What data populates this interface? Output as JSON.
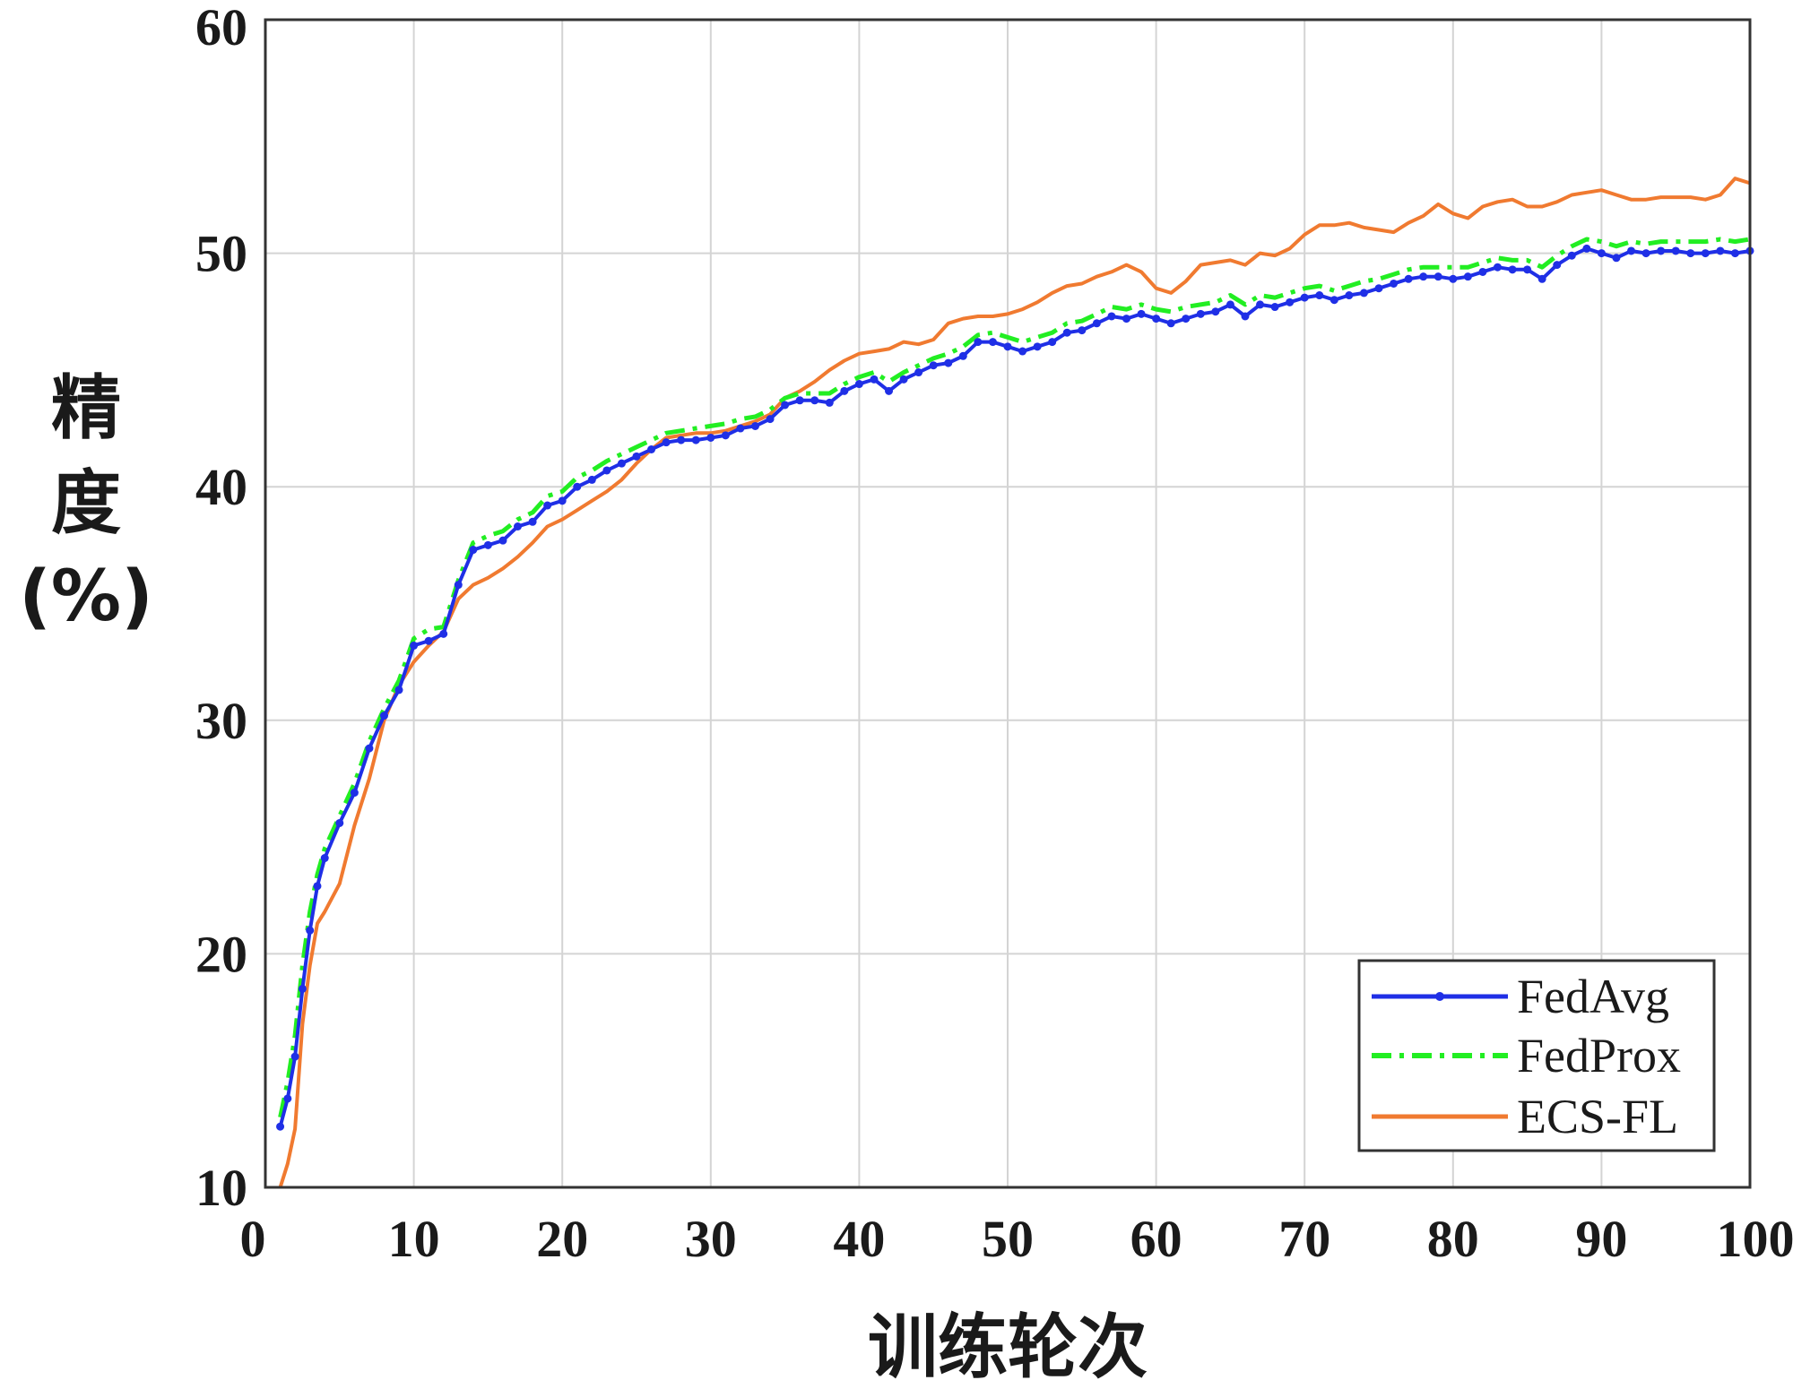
{
  "chart_data": {
    "type": "line",
    "xlabel": "训练轮次",
    "ylabel_lines": [
      "精",
      "度",
      "(%)"
    ],
    "xlim": [
      0,
      100
    ],
    "ylim": [
      10,
      60
    ],
    "xticks": [
      "0",
      "10",
      "20",
      "30",
      "40",
      "50",
      "60",
      "70",
      "80",
      "90",
      "100"
    ],
    "yticks": [
      "10",
      "20",
      "30",
      "40",
      "50",
      "60"
    ],
    "grid": true,
    "legend_position": "bottom-right",
    "series": [
      {
        "name": "FedAvg",
        "color": "#1f2fe6",
        "style": "solid-dots",
        "points": [
          [
            1,
            12.6
          ],
          [
            1.5,
            13.8
          ],
          [
            2,
            15.6
          ],
          [
            2.5,
            18.5
          ],
          [
            3,
            21.0
          ],
          [
            3.5,
            22.9
          ],
          [
            4,
            24.1
          ],
          [
            5,
            25.6
          ],
          [
            6,
            26.9
          ],
          [
            7,
            28.8
          ],
          [
            8,
            30.2
          ],
          [
            9,
            31.3
          ],
          [
            10,
            33.2
          ],
          [
            11,
            33.4
          ],
          [
            12,
            33.7
          ],
          [
            13,
            35.8
          ],
          [
            14,
            37.3
          ],
          [
            15,
            37.5
          ],
          [
            16,
            37.7
          ],
          [
            17,
            38.3
          ],
          [
            18,
            38.5
          ],
          [
            19,
            39.2
          ],
          [
            20,
            39.4
          ],
          [
            21,
            40.0
          ],
          [
            22,
            40.3
          ],
          [
            23,
            40.7
          ],
          [
            24,
            41.0
          ],
          [
            25,
            41.3
          ],
          [
            26,
            41.6
          ],
          [
            27,
            41.9
          ],
          [
            28,
            42.0
          ],
          [
            29,
            42.0
          ],
          [
            30,
            42.1
          ],
          [
            31,
            42.2
          ],
          [
            32,
            42.5
          ],
          [
            33,
            42.6
          ],
          [
            34,
            42.9
          ],
          [
            35,
            43.5
          ],
          [
            36,
            43.7
          ],
          [
            37,
            43.7
          ],
          [
            38,
            43.6
          ],
          [
            39,
            44.1
          ],
          [
            40,
            44.4
          ],
          [
            41,
            44.6
          ],
          [
            42,
            44.1
          ],
          [
            43,
            44.6
          ],
          [
            44,
            44.9
          ],
          [
            45,
            45.2
          ],
          [
            46,
            45.3
          ],
          [
            47,
            45.6
          ],
          [
            48,
            46.2
          ],
          [
            49,
            46.2
          ],
          [
            50,
            46.0
          ],
          [
            51,
            45.8
          ],
          [
            52,
            46.0
          ],
          [
            53,
            46.2
          ],
          [
            54,
            46.6
          ],
          [
            55,
            46.7
          ],
          [
            56,
            47.0
          ],
          [
            57,
            47.3
          ],
          [
            58,
            47.2
          ],
          [
            59,
            47.4
          ],
          [
            60,
            47.2
          ],
          [
            61,
            47.0
          ],
          [
            62,
            47.2
          ],
          [
            63,
            47.4
          ],
          [
            64,
            47.5
          ],
          [
            65,
            47.8
          ],
          [
            66,
            47.3
          ],
          [
            67,
            47.8
          ],
          [
            68,
            47.7
          ],
          [
            69,
            47.9
          ],
          [
            70,
            48.1
          ],
          [
            71,
            48.2
          ],
          [
            72,
            48.0
          ],
          [
            73,
            48.2
          ],
          [
            74,
            48.3
          ],
          [
            75,
            48.5
          ],
          [
            76,
            48.7
          ],
          [
            77,
            48.9
          ],
          [
            78,
            49.0
          ],
          [
            79,
            49.0
          ],
          [
            80,
            48.9
          ],
          [
            81,
            49.0
          ],
          [
            82,
            49.2
          ],
          [
            83,
            49.4
          ],
          [
            84,
            49.3
          ],
          [
            85,
            49.3
          ],
          [
            86,
            48.9
          ],
          [
            87,
            49.5
          ],
          [
            88,
            49.9
          ],
          [
            89,
            50.2
          ],
          [
            90,
            50.0
          ],
          [
            91,
            49.8
          ],
          [
            92,
            50.1
          ],
          [
            93,
            50.0
          ],
          [
            94,
            50.1
          ],
          [
            95,
            50.1
          ],
          [
            96,
            50.0
          ],
          [
            97,
            50.0
          ],
          [
            98,
            50.1
          ],
          [
            99,
            50.0
          ],
          [
            100,
            50.1
          ]
        ]
      },
      {
        "name": "FedProx",
        "color": "#22ee22",
        "style": "dash-dot",
        "points": [
          [
            1,
            13.0
          ],
          [
            1.5,
            14.5
          ],
          [
            2,
            16.5
          ],
          [
            2.5,
            19.5
          ],
          [
            3,
            21.8
          ],
          [
            3.5,
            23.4
          ],
          [
            4,
            24.5
          ],
          [
            5,
            25.9
          ],
          [
            6,
            27.3
          ],
          [
            7,
            29.1
          ],
          [
            8,
            30.5
          ],
          [
            9,
            31.7
          ],
          [
            10,
            33.5
          ],
          [
            11,
            33.9
          ],
          [
            12,
            34.0
          ],
          [
            13,
            36.0
          ],
          [
            14,
            37.6
          ],
          [
            15,
            37.9
          ],
          [
            16,
            38.1
          ],
          [
            17,
            38.6
          ],
          [
            18,
            38.9
          ],
          [
            19,
            39.6
          ],
          [
            20,
            39.8
          ],
          [
            21,
            40.4
          ],
          [
            22,
            40.7
          ],
          [
            23,
            41.1
          ],
          [
            24,
            41.4
          ],
          [
            25,
            41.7
          ],
          [
            26,
            42.0
          ],
          [
            27,
            42.3
          ],
          [
            28,
            42.4
          ],
          [
            29,
            42.5
          ],
          [
            30,
            42.6
          ],
          [
            31,
            42.7
          ],
          [
            32,
            42.9
          ],
          [
            33,
            43.0
          ],
          [
            34,
            43.3
          ],
          [
            35,
            43.8
          ],
          [
            36,
            44.0
          ],
          [
            37,
            44.0
          ],
          [
            38,
            44.0
          ],
          [
            39,
            44.4
          ],
          [
            40,
            44.7
          ],
          [
            41,
            44.9
          ],
          [
            42,
            44.5
          ],
          [
            43,
            44.9
          ],
          [
            44,
            45.2
          ],
          [
            45,
            45.5
          ],
          [
            46,
            45.7
          ],
          [
            47,
            46.0
          ],
          [
            48,
            46.5
          ],
          [
            49,
            46.6
          ],
          [
            50,
            46.4
          ],
          [
            51,
            46.2
          ],
          [
            52,
            46.4
          ],
          [
            53,
            46.6
          ],
          [
            54,
            47.0
          ],
          [
            55,
            47.1
          ],
          [
            56,
            47.4
          ],
          [
            57,
            47.7
          ],
          [
            58,
            47.6
          ],
          [
            59,
            47.8
          ],
          [
            60,
            47.6
          ],
          [
            61,
            47.5
          ],
          [
            62,
            47.7
          ],
          [
            63,
            47.8
          ],
          [
            64,
            47.9
          ],
          [
            65,
            48.2
          ],
          [
            66,
            47.8
          ],
          [
            67,
            48.2
          ],
          [
            68,
            48.1
          ],
          [
            69,
            48.3
          ],
          [
            70,
            48.5
          ],
          [
            71,
            48.6
          ],
          [
            72,
            48.4
          ],
          [
            73,
            48.6
          ],
          [
            74,
            48.8
          ],
          [
            75,
            48.9
          ],
          [
            76,
            49.1
          ],
          [
            77,
            49.3
          ],
          [
            78,
            49.4
          ],
          [
            79,
            49.4
          ],
          [
            80,
            49.4
          ],
          [
            81,
            49.4
          ],
          [
            82,
            49.6
          ],
          [
            83,
            49.8
          ],
          [
            84,
            49.7
          ],
          [
            85,
            49.7
          ],
          [
            86,
            49.4
          ],
          [
            87,
            49.9
          ],
          [
            88,
            50.3
          ],
          [
            89,
            50.6
          ],
          [
            90,
            50.5
          ],
          [
            91,
            50.3
          ],
          [
            92,
            50.5
          ],
          [
            93,
            50.4
          ],
          [
            94,
            50.5
          ],
          [
            95,
            50.5
          ],
          [
            96,
            50.5
          ],
          [
            97,
            50.5
          ],
          [
            98,
            50.6
          ],
          [
            99,
            50.5
          ],
          [
            100,
            50.6
          ]
        ]
      },
      {
        "name": "ECS-FL",
        "color": "#f07a30",
        "style": "solid",
        "points": [
          [
            1,
            10.0
          ],
          [
            1.5,
            11.0
          ],
          [
            2,
            12.5
          ],
          [
            2.5,
            17.0
          ],
          [
            3,
            19.5
          ],
          [
            3.5,
            21.3
          ],
          [
            4,
            21.8
          ],
          [
            5,
            23.0
          ],
          [
            6,
            25.5
          ],
          [
            7,
            27.5
          ],
          [
            8,
            30.0
          ],
          [
            9,
            31.5
          ],
          [
            10,
            32.5
          ],
          [
            11,
            33.2
          ],
          [
            12,
            33.8
          ],
          [
            13,
            35.2
          ],
          [
            14,
            35.8
          ],
          [
            15,
            36.1
          ],
          [
            16,
            36.5
          ],
          [
            17,
            37.0
          ],
          [
            18,
            37.6
          ],
          [
            19,
            38.3
          ],
          [
            20,
            38.6
          ],
          [
            21,
            39.0
          ],
          [
            22,
            39.4
          ],
          [
            23,
            39.8
          ],
          [
            24,
            40.3
          ],
          [
            25,
            41.0
          ],
          [
            26,
            41.6
          ],
          [
            27,
            42.1
          ],
          [
            28,
            42.2
          ],
          [
            29,
            42.3
          ],
          [
            30,
            42.3
          ],
          [
            31,
            42.4
          ],
          [
            32,
            42.6
          ],
          [
            33,
            42.8
          ],
          [
            34,
            43.1
          ],
          [
            35,
            43.8
          ],
          [
            36,
            44.1
          ],
          [
            37,
            44.5
          ],
          [
            38,
            45.0
          ],
          [
            39,
            45.4
          ],
          [
            40,
            45.7
          ],
          [
            41,
            45.8
          ],
          [
            42,
            45.9
          ],
          [
            43,
            46.2
          ],
          [
            44,
            46.1
          ],
          [
            45,
            46.3
          ],
          [
            46,
            47.0
          ],
          [
            47,
            47.2
          ],
          [
            48,
            47.3
          ],
          [
            49,
            47.3
          ],
          [
            50,
            47.4
          ],
          [
            51,
            47.6
          ],
          [
            52,
            47.9
          ],
          [
            53,
            48.3
          ],
          [
            54,
            48.6
          ],
          [
            55,
            48.7
          ],
          [
            56,
            49.0
          ],
          [
            57,
            49.2
          ],
          [
            58,
            49.5
          ],
          [
            59,
            49.2
          ],
          [
            60,
            48.5
          ],
          [
            61,
            48.3
          ],
          [
            62,
            48.8
          ],
          [
            63,
            49.5
          ],
          [
            64,
            49.6
          ],
          [
            65,
            49.7
          ],
          [
            66,
            49.5
          ],
          [
            67,
            50.0
          ],
          [
            68,
            49.9
          ],
          [
            69,
            50.2
          ],
          [
            70,
            50.8
          ],
          [
            71,
            51.2
          ],
          [
            72,
            51.2
          ],
          [
            73,
            51.3
          ],
          [
            74,
            51.1
          ],
          [
            75,
            51.0
          ],
          [
            76,
            50.9
          ],
          [
            77,
            51.3
          ],
          [
            78,
            51.6
          ],
          [
            79,
            52.1
          ],
          [
            80,
            51.7
          ],
          [
            81,
            51.5
          ],
          [
            82,
            52.0
          ],
          [
            83,
            52.2
          ],
          [
            84,
            52.3
          ],
          [
            85,
            52.0
          ],
          [
            86,
            52.0
          ],
          [
            87,
            52.2
          ],
          [
            88,
            52.5
          ],
          [
            89,
            52.6
          ],
          [
            90,
            52.7
          ],
          [
            91,
            52.5
          ],
          [
            92,
            52.3
          ],
          [
            93,
            52.3
          ],
          [
            94,
            52.4
          ],
          [
            95,
            52.4
          ],
          [
            96,
            52.4
          ],
          [
            97,
            52.3
          ],
          [
            98,
            52.5
          ],
          [
            99,
            53.2
          ],
          [
            100,
            53.0
          ]
        ]
      }
    ]
  }
}
